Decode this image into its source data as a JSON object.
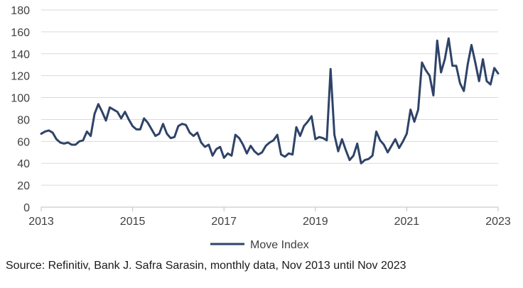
{
  "chart_data": {
    "type": "line",
    "title": "",
    "xlabel": "",
    "ylabel": "",
    "ylim": [
      0,
      180
    ],
    "xlim": [
      2013,
      2023
    ],
    "y_ticks": [
      "0",
      "20",
      "40",
      "60",
      "80",
      "100",
      "120",
      "140",
      "160",
      "180"
    ],
    "x_ticks": [
      "2013",
      "2015",
      "2017",
      "2019",
      "2021",
      "2023"
    ],
    "grid": true,
    "legend": "bottom-center",
    "series": [
      {
        "name": "Move Index",
        "color": "#2e4368",
        "values": [
          67,
          69,
          70,
          68,
          62,
          59,
          58,
          59,
          57,
          57,
          60,
          61,
          69,
          65,
          85,
          94,
          87,
          79,
          91,
          89,
          87,
          81,
          87,
          80,
          74,
          71,
          71,
          81,
          77,
          71,
          65,
          67,
          76,
          67,
          63,
          64,
          74,
          76,
          75,
          68,
          65,
          68,
          59,
          55,
          57,
          47,
          53,
          55,
          45,
          49,
          47,
          66,
          63,
          57,
          49,
          56,
          51,
          48,
          50,
          56,
          59,
          61,
          66,
          48,
          46,
          49,
          48,
          73,
          65,
          74,
          78,
          83,
          62,
          64,
          63,
          61,
          126,
          66,
          51,
          62,
          52,
          43,
          47,
          58,
          40,
          43,
          44,
          47,
          69,
          61,
          57,
          50,
          56,
          62,
          54,
          60,
          67,
          89,
          78,
          89,
          132,
          125,
          120,
          102,
          152,
          123,
          135,
          154,
          129,
          129,
          113,
          106,
          130,
          148,
          132,
          115,
          135,
          115,
          112,
          127,
          122
        ]
      }
    ]
  },
  "source_note": "Source: Refinitiv, Bank J. Safra Sarasin, monthly data, Nov 2013 until Nov 2023"
}
